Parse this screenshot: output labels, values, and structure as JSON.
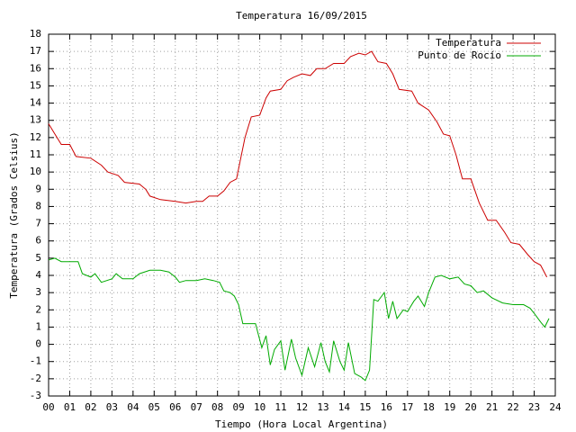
{
  "chart_data": {
    "type": "line",
    "title": "Temperatura 16/09/2015",
    "xlabel": "Tiempo (Hora Local Argentina)",
    "ylabel": "Temperatura (Grados Celsius)",
    "xlim": [
      0,
      24
    ],
    "ylim": [
      -3,
      18
    ],
    "xticks": [
      {
        "value": 0,
        "label": "00"
      },
      {
        "value": 1,
        "label": "01"
      },
      {
        "value": 2,
        "label": "02"
      },
      {
        "value": 3,
        "label": "03"
      },
      {
        "value": 4,
        "label": "04"
      },
      {
        "value": 5,
        "label": "05"
      },
      {
        "value": 6,
        "label": "06"
      },
      {
        "value": 7,
        "label": "07"
      },
      {
        "value": 8,
        "label": "08"
      },
      {
        "value": 9,
        "label": "09"
      },
      10,
      11,
      12,
      13,
      14,
      15,
      16,
      17,
      18,
      19,
      20,
      21,
      22,
      23,
      24
    ],
    "yticks": [
      -3,
      -2,
      -1,
      0,
      1,
      2,
      3,
      4,
      5,
      6,
      7,
      8,
      9,
      10,
      11,
      12,
      13,
      14,
      15,
      16,
      17,
      18
    ],
    "grid": true,
    "legend": "top-right",
    "series": [
      {
        "name": "Temperatura",
        "color": "#cc0000",
        "x": [
          0,
          0.3,
          0.6,
          1.0,
          1.3,
          2.0,
          2.5,
          2.8,
          3.3,
          3.6,
          4.3,
          4.6,
          4.8,
          5.3,
          6.0,
          6.5,
          7.0,
          7.3,
          7.6,
          8.0,
          8.3,
          8.6,
          8.9,
          9.1,
          9.3,
          9.6,
          10.0,
          10.3,
          10.5,
          11.0,
          11.3,
          11.6,
          12.0,
          12.4,
          12.7,
          13.1,
          13.5,
          14.0,
          14.3,
          14.7,
          15.0,
          15.3,
          15.6,
          16.0,
          16.3,
          16.6,
          17.2,
          17.5,
          18.0,
          18.4,
          18.7,
          19.0,
          19.3,
          19.6,
          20.0,
          20.4,
          20.8,
          21.2,
          21.6,
          21.9,
          22.3,
          22.7,
          23.0,
          23.3,
          23.6
        ],
        "values": [
          12.8,
          12.2,
          11.6,
          11.6,
          10.9,
          10.8,
          10.4,
          10.0,
          9.8,
          9.4,
          9.3,
          9.0,
          8.6,
          8.4,
          8.3,
          8.2,
          8.3,
          8.3,
          8.6,
          8.6,
          8.9,
          9.4,
          9.6,
          10.8,
          12.0,
          13.2,
          13.3,
          14.3,
          14.7,
          14.8,
          15.3,
          15.5,
          15.7,
          15.6,
          16.0,
          16.0,
          16.3,
          16.3,
          16.7,
          16.9,
          16.8,
          17.0,
          16.4,
          16.3,
          15.7,
          14.8,
          14.7,
          14.0,
          13.6,
          12.9,
          12.2,
          12.1,
          11.0,
          9.6,
          9.6,
          8.2,
          7.2,
          7.2,
          6.5,
          5.9,
          5.8,
          5.2,
          4.8,
          4.6,
          3.9
        ]
      },
      {
        "name": "Punto de Rocío",
        "color": "#00aa00",
        "x": [
          0,
          0.3,
          0.6,
          1.0,
          1.4,
          1.6,
          2.0,
          2.2,
          2.5,
          3.0,
          3.2,
          3.5,
          4.0,
          4.3,
          4.8,
          5.3,
          5.7,
          6.0,
          6.2,
          6.5,
          7.0,
          7.4,
          7.8,
          8.1,
          8.3,
          8.6,
          8.8,
          9.0,
          9.2,
          9.5,
          9.8,
          10.1,
          10.3,
          10.5,
          10.7,
          11.0,
          11.2,
          11.5,
          11.7,
          12.0,
          12.3,
          12.6,
          12.9,
          13.1,
          13.3,
          13.5,
          13.8,
          14.0,
          14.2,
          14.5,
          14.8,
          15.0,
          15.2,
          15.4,
          15.6,
          15.9,
          16.1,
          16.3,
          16.5,
          16.8,
          17.0,
          17.3,
          17.5,
          17.8,
          18.0,
          18.3,
          18.6,
          19.0,
          19.4,
          19.7,
          20.0,
          20.3,
          20.6,
          21.0,
          21.5,
          22.0,
          22.5,
          22.8,
          23.0,
          23.3,
          23.5,
          23.7
        ],
        "values": [
          4.9,
          5.0,
          4.8,
          4.8,
          4.8,
          4.1,
          3.9,
          4.1,
          3.6,
          3.8,
          4.1,
          3.8,
          3.8,
          4.1,
          4.3,
          4.3,
          4.2,
          3.9,
          3.6,
          3.7,
          3.7,
          3.8,
          3.7,
          3.6,
          3.1,
          3.0,
          2.8,
          2.3,
          1.2,
          1.2,
          1.2,
          -0.2,
          0.5,
          -1.2,
          -0.3,
          0.2,
          -1.5,
          0.3,
          -0.8,
          -1.8,
          -0.2,
          -1.3,
          0.1,
          -1.0,
          -1.6,
          0.2,
          -1.0,
          -1.5,
          0.1,
          -1.7,
          -1.9,
          -2.1,
          -1.5,
          2.6,
          2.5,
          3.0,
          1.5,
          2.5,
          1.5,
          2.0,
          1.9,
          2.5,
          2.8,
          2.2,
          3.0,
          3.9,
          4.0,
          3.8,
          3.9,
          3.5,
          3.4,
          3.0,
          3.1,
          2.7,
          2.4,
          2.3,
          2.3,
          2.1,
          1.8,
          1.3,
          1.0,
          1.5
        ]
      }
    ]
  }
}
